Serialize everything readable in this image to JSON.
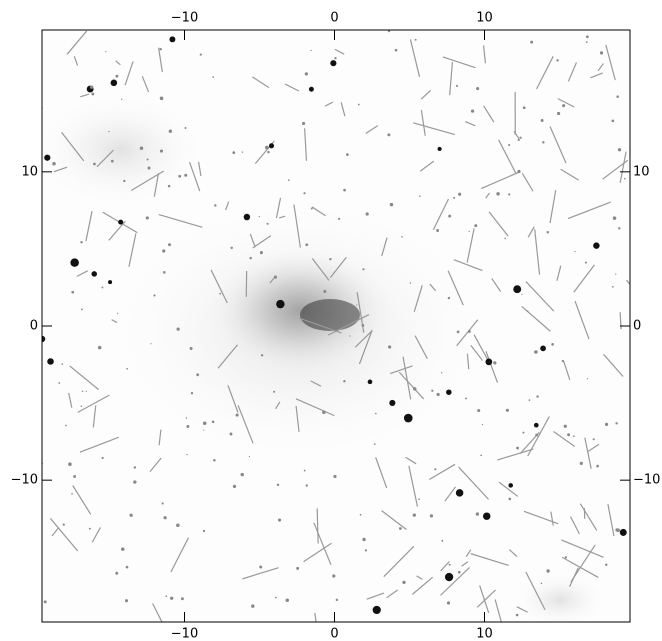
{
  "chart_data": {
    "type": "image",
    "xlim": [
      -19.5,
      19.7
    ],
    "ylim": [
      -19.2,
      19.2
    ],
    "xticks": [
      {
        "value": -10,
        "label": "−10"
      },
      0,
      10
    ],
    "yticks": [
      {
        "value": -10,
        "label": "−10"
      },
      0,
      10
    ]
  }
}
